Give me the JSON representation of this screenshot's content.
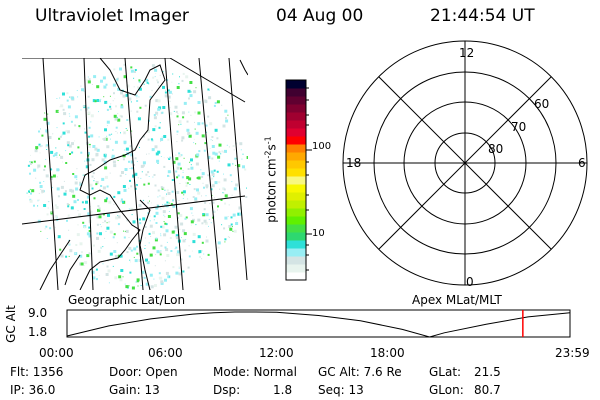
{
  "header": {
    "instrument": "Ultraviolet Imager",
    "date": "04 Aug 00",
    "time": "21:44:54 UT"
  },
  "map_panel": {
    "label": "Geographic Lat/Lon"
  },
  "polar_panel": {
    "label": "Apex MLat/MLT",
    "mlt_labels": [
      "12",
      "18",
      "6",
      "0"
    ],
    "lat_labels": [
      "60",
      "70",
      "80"
    ]
  },
  "colorbar": {
    "unit_label": "photon cm",
    "unit_sup1": "-2",
    "unit_mid": "s",
    "unit_sup2": "-1",
    "tick_labels": [
      "100",
      "10"
    ],
    "colors": [
      "#ffffff",
      "#e8f4ee",
      "#d4e4e4",
      "#98eef4",
      "#2ee0d8",
      "#2ed870",
      "#44e044",
      "#60f000",
      "#90f000",
      "#c0f000",
      "#e0f000",
      "#f8f800",
      "#f8f880",
      "#ffe000",
      "#ffc800",
      "#ffa800",
      "#ff8000",
      "#ff0000",
      "#e00030",
      "#c00030",
      "#a00030",
      "#800030",
      "#600030",
      "#400030",
      "#000030"
    ]
  },
  "chart_data": {
    "type": "line",
    "title": "",
    "ylabel": "GC Alt",
    "y_tick_labels": [
      "9.0",
      "1.8"
    ],
    "ylim": [
      1.8,
      9.0
    ],
    "x_tick_labels": [
      "00:00",
      "06:00",
      "12:00",
      "18:00",
      "23:59"
    ],
    "xlim_hours": [
      0,
      24
    ],
    "x_hours": [
      0,
      2,
      4,
      6,
      7,
      8,
      9,
      10,
      12,
      14,
      16,
      17.3,
      18,
      20,
      22,
      24
    ],
    "y_alt": [
      2.1,
      5.0,
      7.0,
      8.4,
      8.8,
      9.0,
      9.0,
      8.9,
      8.0,
      6.5,
      4.0,
      1.8,
      3.0,
      5.5,
      7.6,
      8.8
    ],
    "marker_hour": 21.75,
    "marker_color": "#ff0000"
  },
  "info": {
    "flt": "Flt: 1356",
    "ip": "IP: 36.0",
    "door": "Door: Open",
    "gain": "Gain: 13",
    "mode": "Mode: Normal",
    "dsp_label": "Dsp:",
    "dsp_value": "1.8",
    "gcalt": "GC Alt: 7.6 Re",
    "seq": "Seq: 13",
    "glat_label": "GLat:",
    "glat_value": "21.5",
    "glon_label": "GLon:",
    "glon_value": "80.7"
  }
}
